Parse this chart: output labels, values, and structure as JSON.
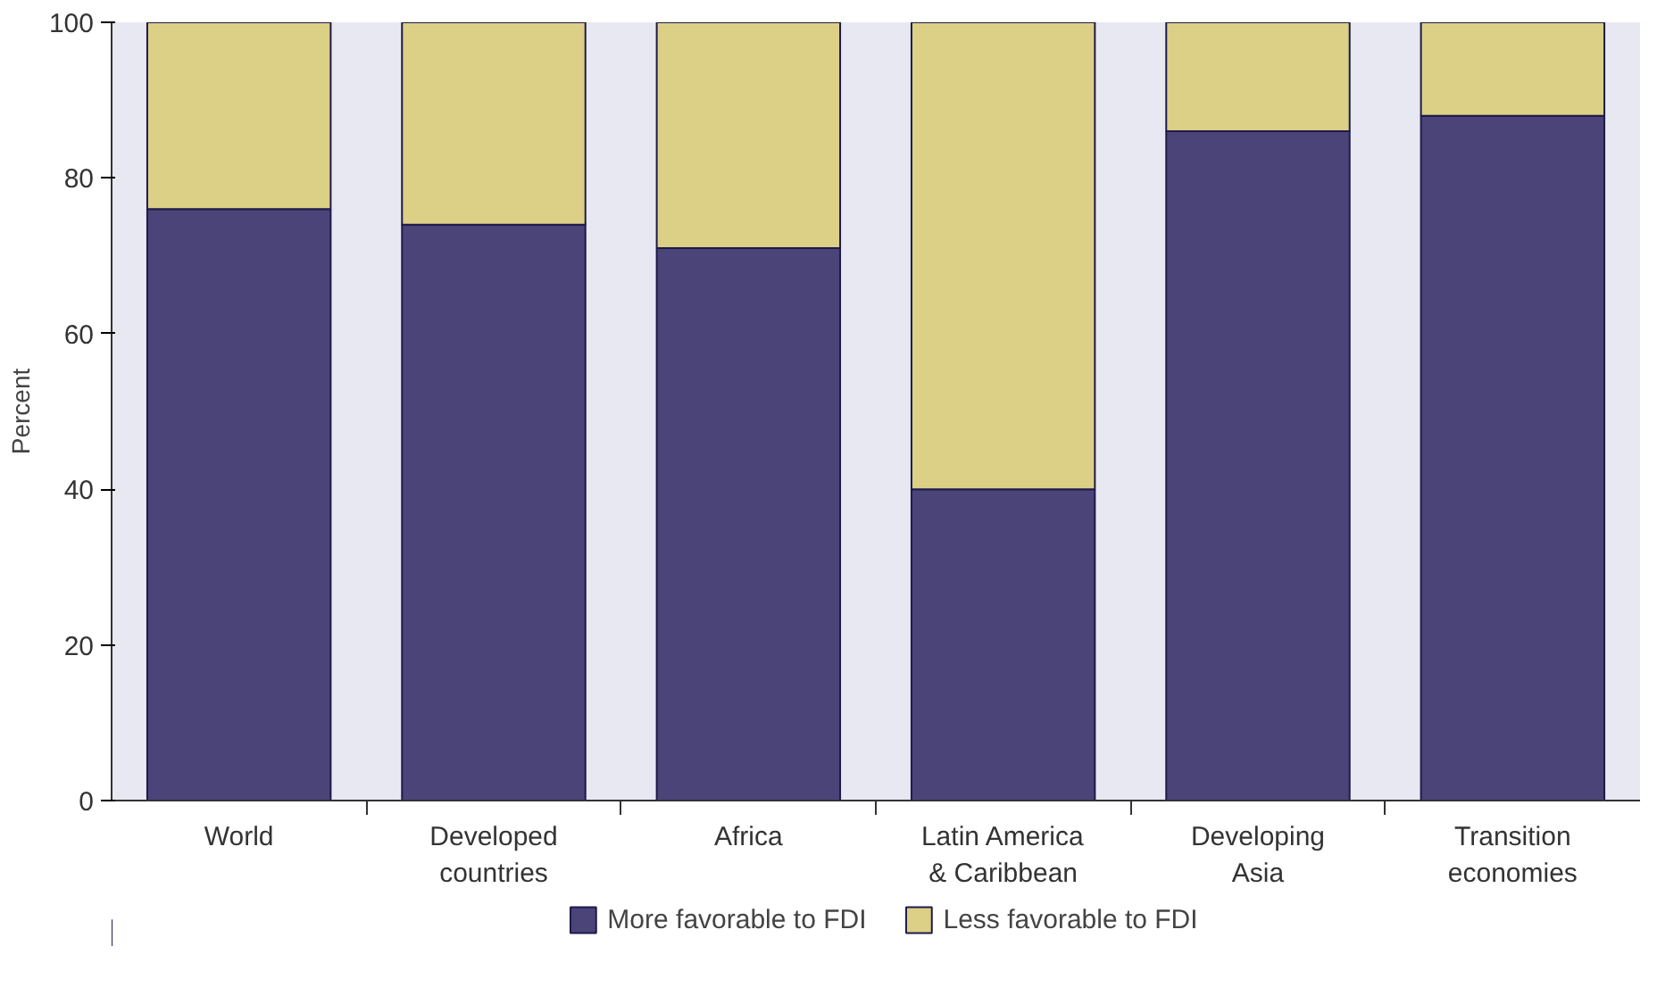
{
  "chart_data": {
    "type": "bar",
    "stacked": true,
    "ylabel": "Percent",
    "categories": [
      "World",
      "Developed countries",
      "Africa",
      "Latin America & Caribbean",
      "Developing Asia",
      "Transition economies"
    ],
    "series": [
      {
        "name": "More favorable to FDI",
        "color": "#4a4479",
        "values": [
          76,
          74,
          71,
          40,
          86,
          88
        ]
      },
      {
        "name": "Less favorable to FDI",
        "color": "#dccf86",
        "values": [
          24,
          26,
          29,
          60,
          14,
          12
        ]
      }
    ],
    "ylim": [
      0,
      100
    ],
    "yticks": [
      0,
      20,
      40,
      60,
      80,
      100
    ],
    "grid": false,
    "legend": "bottom"
  }
}
